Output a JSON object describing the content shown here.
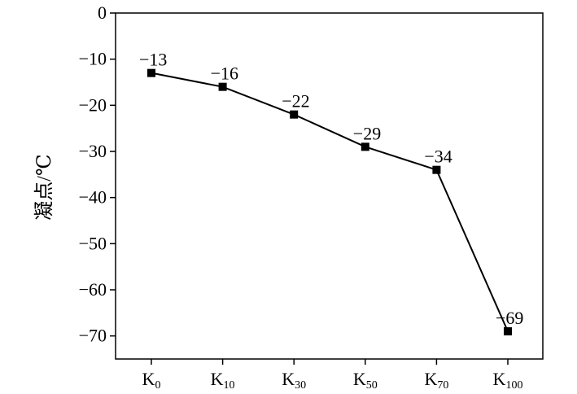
{
  "chart_data": {
    "type": "line",
    "title": "",
    "xlabel": "",
    "ylabel": "凝点/℃",
    "categories": [
      {
        "base": "K",
        "sub": "0"
      },
      {
        "base": "K",
        "sub": "10"
      },
      {
        "base": "K",
        "sub": "30"
      },
      {
        "base": "K",
        "sub": "50"
      },
      {
        "base": "K",
        "sub": "70"
      },
      {
        "base": "K",
        "sub": "100"
      }
    ],
    "series": [
      {
        "values": [
          -13,
          -16,
          -22,
          -29,
          -34,
          -69
        ],
        "data_labels": [
          "−13",
          "−16",
          "−22",
          "−29",
          "−34",
          "−69"
        ],
        "marker": "square",
        "color": "#000000"
      }
    ],
    "ylim": [
      -75,
      0
    ],
    "yticks": [
      0,
      -10,
      -20,
      -30,
      -40,
      -50,
      -60,
      -70
    ],
    "ytick_labels": [
      "0",
      "−10",
      "−20",
      "−30",
      "−40",
      "−50",
      "−60",
      "−70"
    ],
    "grid": false,
    "legend": "none"
  }
}
